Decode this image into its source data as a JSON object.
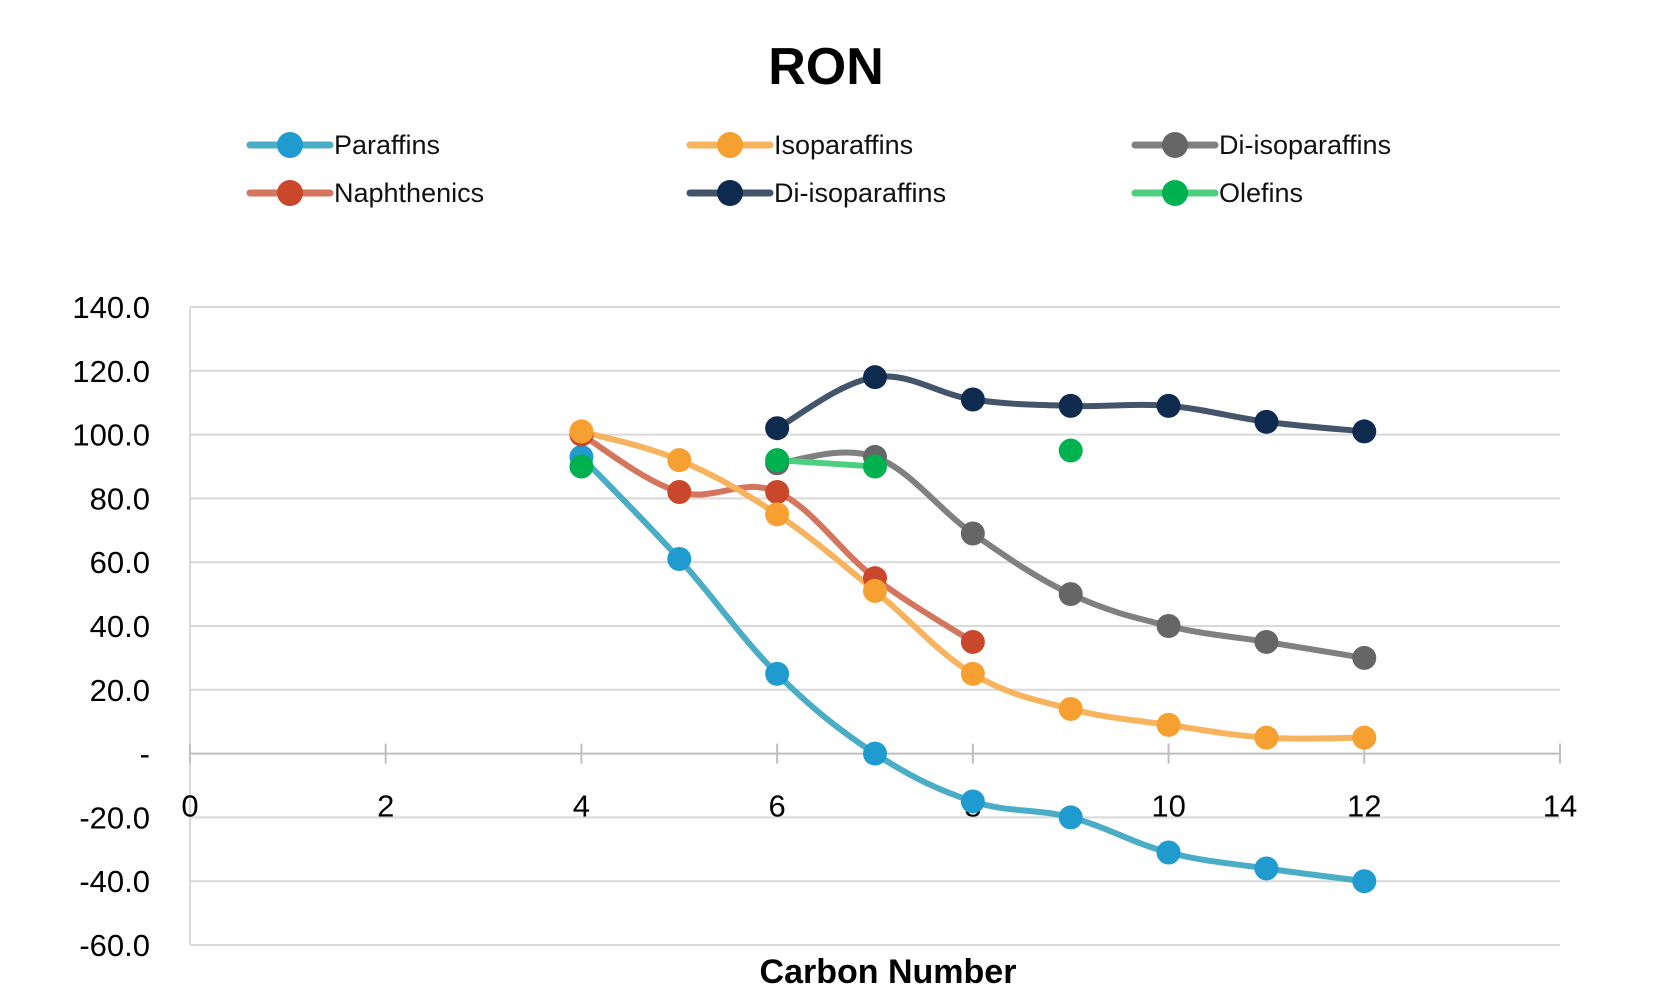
{
  "chart_data": {
    "type": "line",
    "title": "RON",
    "xlabel": "Carbon Number",
    "ylabel": "",
    "xlim": [
      0,
      14
    ],
    "ylim": [
      -60,
      140
    ],
    "x_ticks": [
      0,
      2,
      4,
      6,
      8,
      10,
      12,
      14
    ],
    "y_ticks": [
      {
        "value": 140,
        "label": "140.0"
      },
      {
        "value": 120,
        "label": "120.0"
      },
      {
        "value": 100,
        "label": "100.0"
      },
      {
        "value": 80,
        "label": "80.0"
      },
      {
        "value": 60,
        "label": "60.0"
      },
      {
        "value": 40,
        "label": "40.0"
      },
      {
        "value": 20,
        "label": "20.0"
      },
      {
        "value": 0,
        "label": "-"
      },
      {
        "value": -20,
        "label": "-20.0"
      },
      {
        "value": -40,
        "label": "-40.0"
      },
      {
        "value": -60,
        "label": "-60.0"
      }
    ],
    "grid": true,
    "legend_position": "top",
    "series": [
      {
        "name": "Paraffins",
        "color": "#4bacc6",
        "marker_color": "#1f9bd0",
        "line": true,
        "points": [
          [
            4,
            93
          ],
          [
            5,
            61
          ],
          [
            6,
            25
          ],
          [
            7,
            0
          ],
          [
            8,
            -15
          ],
          [
            9,
            -20
          ],
          [
            10,
            -31
          ],
          [
            11,
            -36
          ],
          [
            12,
            -40
          ]
        ]
      },
      {
        "name": "Naphthenics",
        "color": "#d4755e",
        "marker_color": "#c9472a",
        "line": true,
        "points": [
          [
            4,
            100
          ],
          [
            5,
            82
          ],
          [
            6,
            82
          ],
          [
            7,
            55
          ],
          [
            8,
            35
          ]
        ]
      },
      {
        "name": "Isoparaffins",
        "color": "#f8b35e",
        "marker_color": "#f5a030",
        "line": true,
        "points": [
          [
            4,
            101
          ],
          [
            5,
            92
          ],
          [
            6,
            75
          ],
          [
            7,
            51
          ],
          [
            8,
            25
          ],
          [
            9,
            14
          ],
          [
            10,
            9
          ],
          [
            11,
            5
          ],
          [
            12,
            5
          ]
        ]
      },
      {
        "name": "Di-isoparaffins",
        "color": "#44546a",
        "marker_color": "#0e2a4f",
        "line": true,
        "points": [
          [
            6,
            102
          ],
          [
            7,
            118
          ],
          [
            8,
            111
          ],
          [
            9,
            109
          ],
          [
            10,
            109
          ],
          [
            11,
            104
          ],
          [
            12,
            101
          ]
        ]
      },
      {
        "name": "Di-isoparaffins",
        "color": "#808080",
        "marker_color": "#666666",
        "line": true,
        "points": [
          [
            6,
            91
          ],
          [
            7,
            93
          ],
          [
            8,
            69
          ],
          [
            9,
            50
          ],
          [
            10,
            40
          ],
          [
            11,
            35
          ],
          [
            12,
            30
          ]
        ]
      },
      {
        "name": "Olefins",
        "color": "#4ccf7f",
        "marker_color": "#00b14f",
        "line": true,
        "points": [
          [
            4,
            90
          ]
        ]
      },
      {
        "name": "Olefins",
        "color": "#4ccf7f",
        "marker_color": "#00b14f",
        "line": true,
        "points": [
          [
            6,
            92
          ],
          [
            7,
            90
          ]
        ]
      },
      {
        "name": "Olefins",
        "color": "#4ccf7f",
        "marker_color": "#00b14f",
        "line": true,
        "points": [
          [
            9,
            95
          ]
        ]
      }
    ],
    "legend": [
      {
        "name": "Paraffins",
        "color": "#4bacc6",
        "marker_color": "#1f9bd0"
      },
      {
        "name": "Isoparaffins",
        "color": "#f8b35e",
        "marker_color": "#f5a030"
      },
      {
        "name": "Di-isoparaffins",
        "color": "#808080",
        "marker_color": "#666666"
      },
      {
        "name": "Naphthenics",
        "color": "#d4755e",
        "marker_color": "#c9472a"
      },
      {
        "name": "Di-isoparaffins",
        "color": "#44546a",
        "marker_color": "#0e2a4f"
      },
      {
        "name": "Olefins",
        "color": "#4ccf7f",
        "marker_color": "#00b14f"
      }
    ]
  }
}
